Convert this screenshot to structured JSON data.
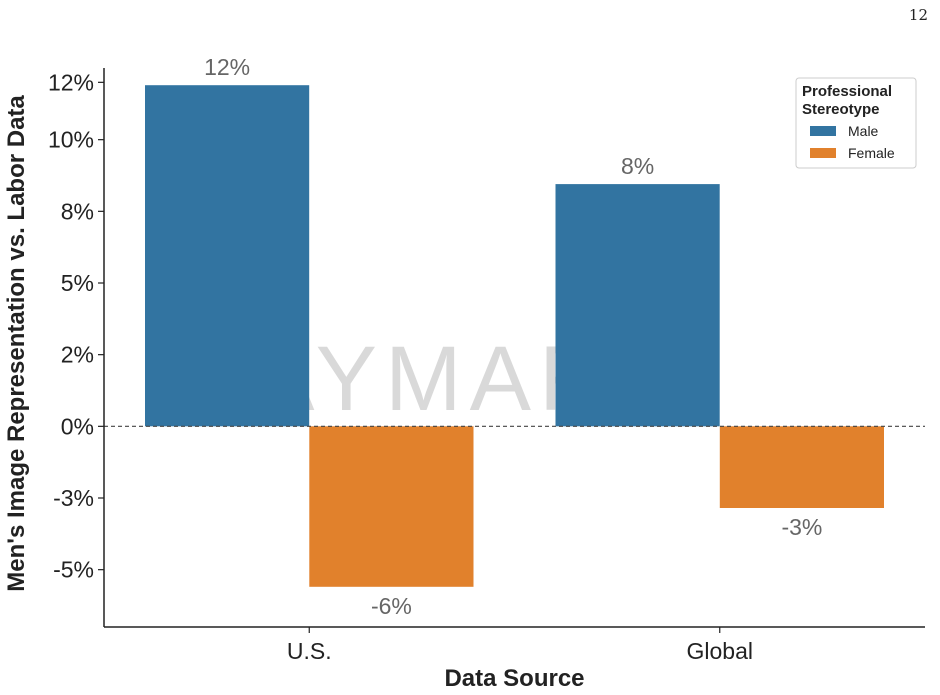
{
  "page_number": "12",
  "watermark": "AYMARA",
  "colors": {
    "male": "#3274a1",
    "female": "#e1812c",
    "axis": "#222222"
  },
  "chart_data": {
    "type": "bar",
    "categories": [
      "U.S.",
      "Global"
    ],
    "series": [
      {
        "name": "Male",
        "values": [
          11.9,
          8.45
        ],
        "labels": [
          "12%",
          "8%"
        ]
      },
      {
        "name": "Female",
        "values": [
          -5.6,
          -2.85
        ],
        "labels": [
          "-6%",
          "-3%"
        ]
      }
    ],
    "xlabel": "Data Source",
    "ylabel": "Men's Image Representation vs. Labor Data",
    "ylim": [
      -7,
      12.5
    ],
    "yticks": [
      {
        "value": 12,
        "label": "12%"
      },
      {
        "value": 10,
        "label": "10%"
      },
      {
        "value": 7.5,
        "label": "8%"
      },
      {
        "value": 5,
        "label": "5%"
      },
      {
        "value": 2.5,
        "label": "2%"
      },
      {
        "value": 0,
        "label": "0%"
      },
      {
        "value": -2.5,
        "label": "-3%"
      },
      {
        "value": -5,
        "label": "-5%"
      }
    ],
    "zero_line": true,
    "grid": false,
    "legend": {
      "title_lines": [
        "Professional",
        "Stereotype"
      ],
      "placement": "top-right"
    }
  }
}
